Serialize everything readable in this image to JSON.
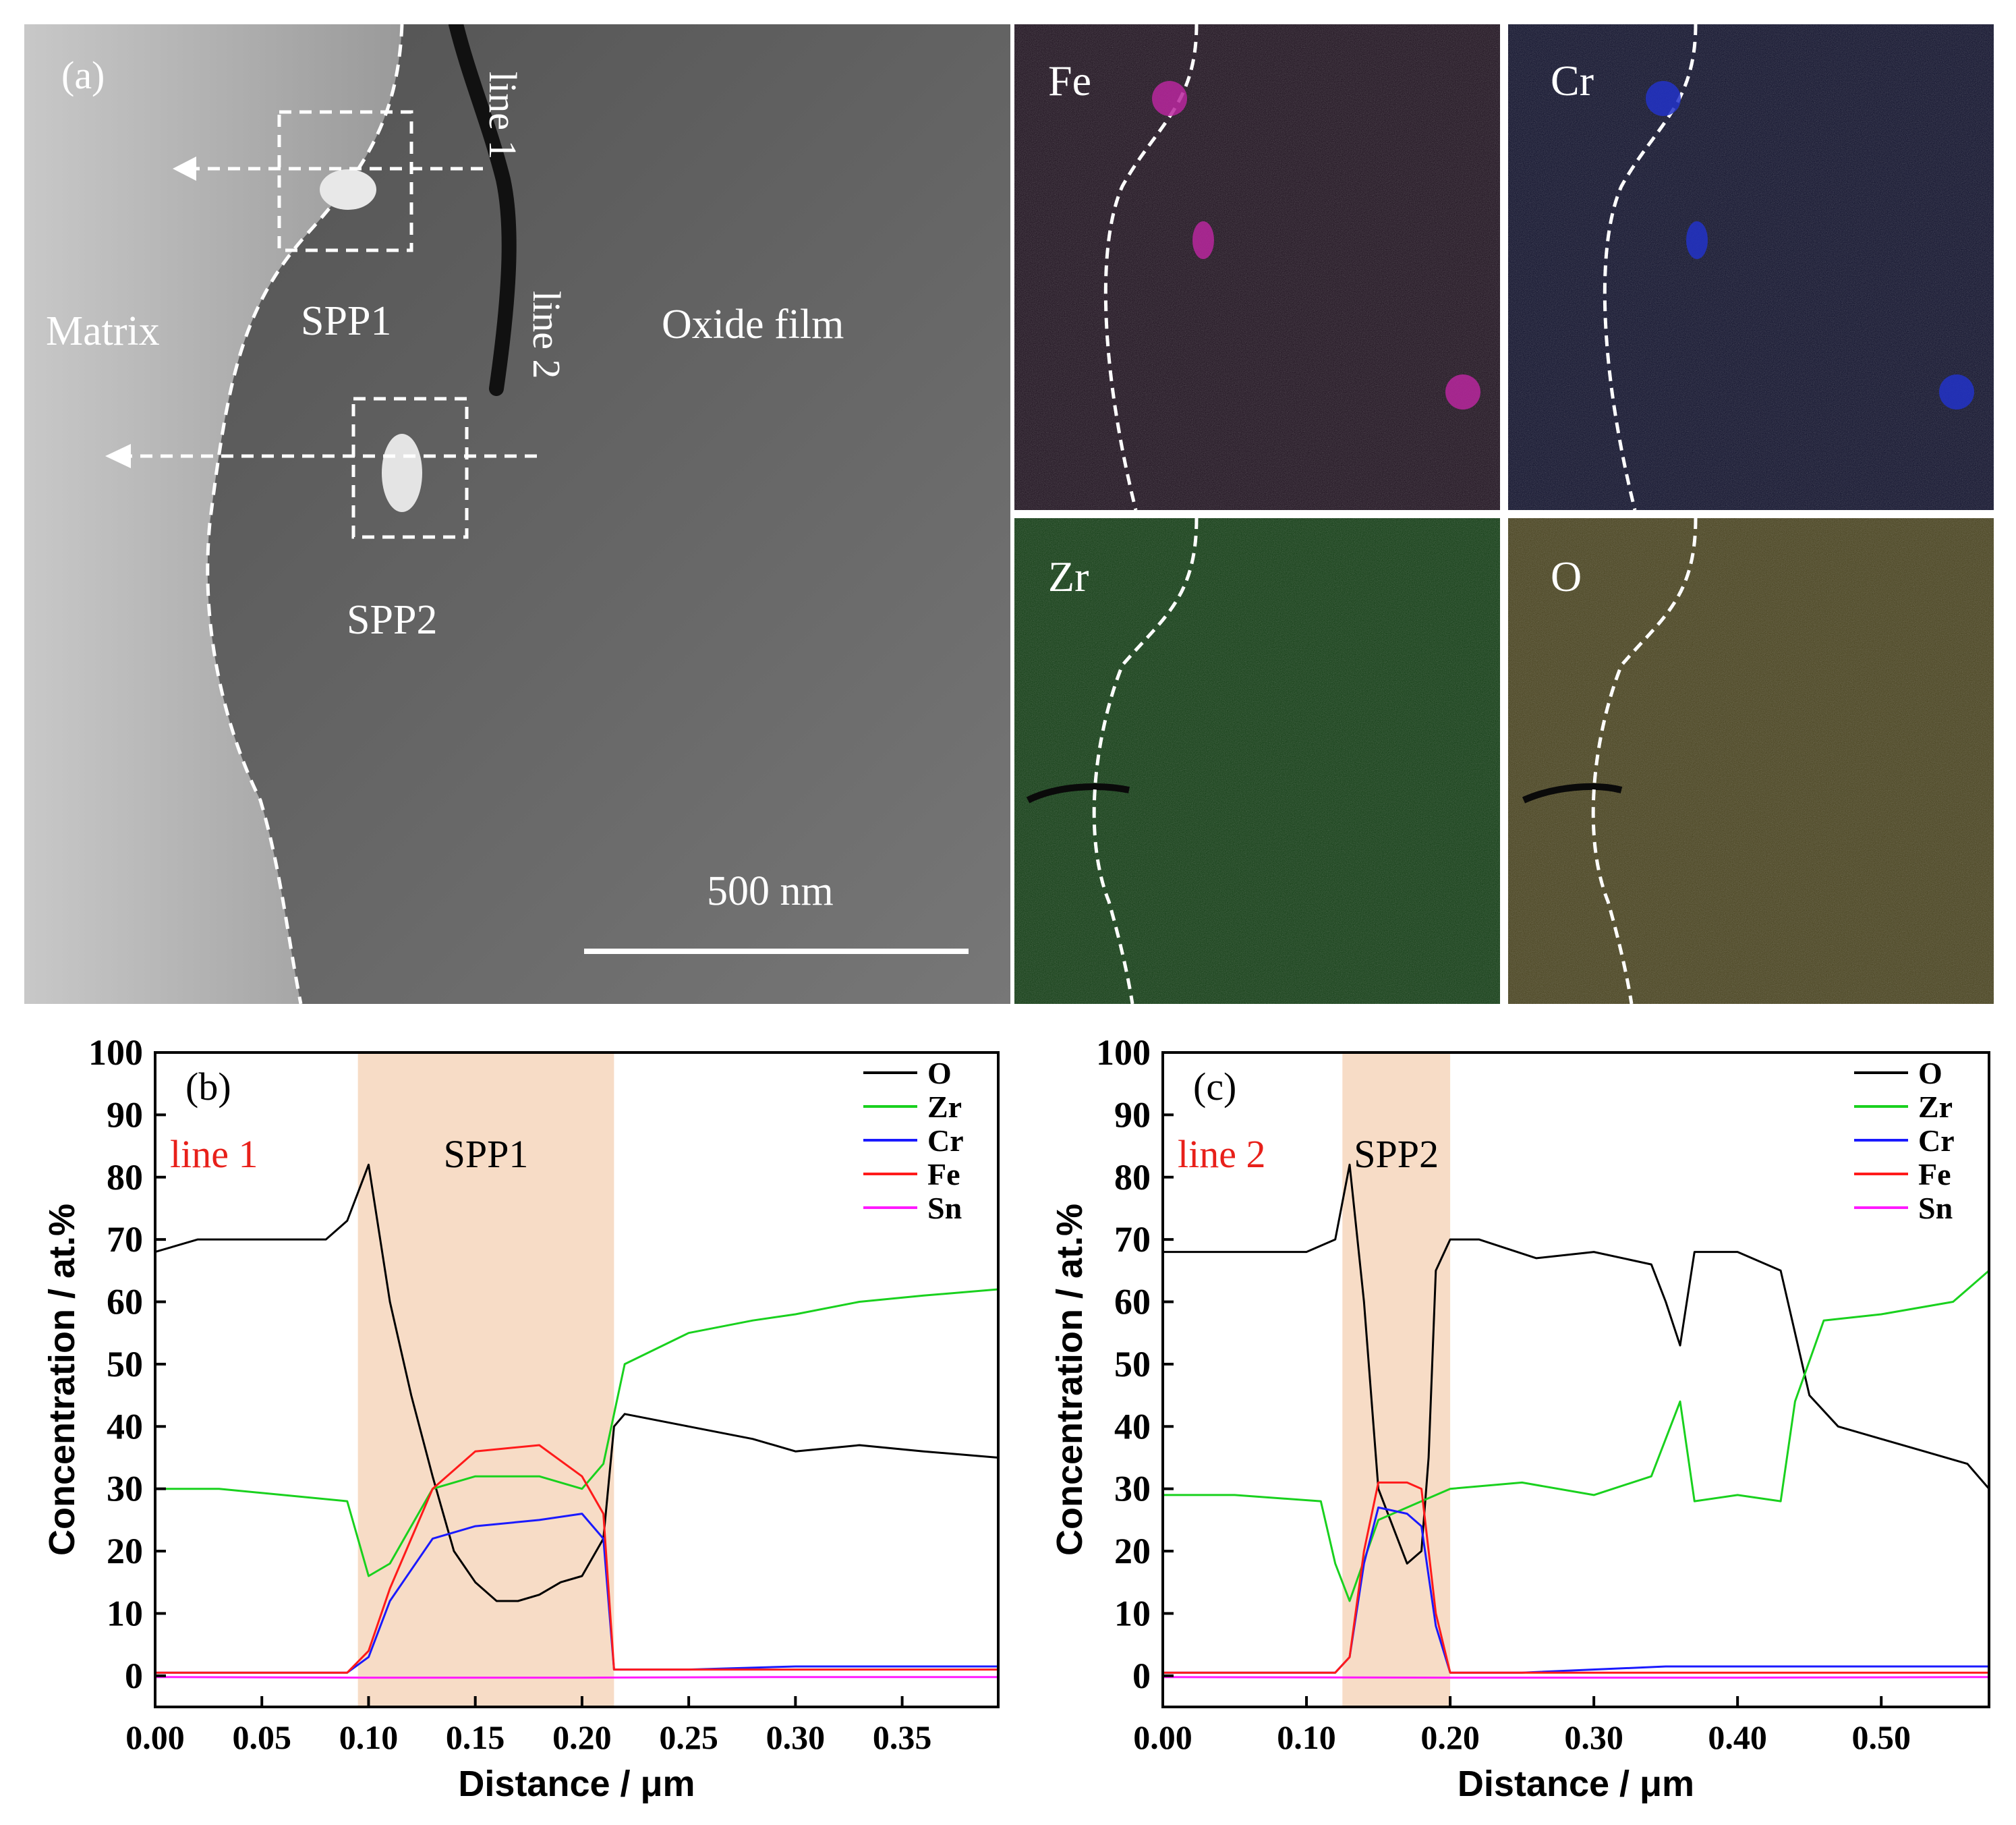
{
  "panel_a": {
    "label": "(a)",
    "region_matrix": "Matrix",
    "region_oxide": "Oxide film",
    "spp1_label": "SPP1",
    "spp2_label": "SPP2",
    "line1_label": "line 1",
    "line2_label": "line 2",
    "scale_bar_label": "500 nm"
  },
  "maps": [
    {
      "element": "Fe",
      "color": "#b8279e",
      "background": "#1a0c1a"
    },
    {
      "element": "Cr",
      "color": "#2232c8",
      "background": "#0b0c28"
    },
    {
      "element": "Zr",
      "color": "#2e8c24",
      "background": "#0d3a0f"
    },
    {
      "element": "O",
      "color": "#a89a2a",
      "background": "#46401a"
    }
  ],
  "chart_data": [
    {
      "type": "line",
      "panel_label": "(b)",
      "line_label": "line 1",
      "highlight_label": "SPP1",
      "highlight_x": [
        0.095,
        0.215
      ],
      "xlabel": "Distance / μm",
      "ylabel": "Concentration / at.%",
      "xlim": [
        0.0,
        0.395
      ],
      "ylim": [
        -5,
        100
      ],
      "xticks": [
        0.0,
        0.05,
        0.1,
        0.15,
        0.2,
        0.25,
        0.3,
        0.35
      ],
      "xtick_labels": [
        "0.00",
        "0.05",
        "0.10",
        "0.15",
        "0.20",
        "0.25",
        "0.30",
        "0.35"
      ],
      "yticks": [
        0,
        10,
        20,
        30,
        40,
        50,
        60,
        70,
        80,
        90,
        100
      ],
      "ytick_labels": [
        "0",
        "10",
        "20",
        "30",
        "40",
        "50",
        "60",
        "70",
        "80",
        "90",
        "100"
      ],
      "legend_position": "top-right",
      "series": [
        {
          "name": "O",
          "color": "#000000",
          "x": [
            0.0,
            0.02,
            0.04,
            0.06,
            0.08,
            0.09,
            0.1,
            0.11,
            0.12,
            0.13,
            0.14,
            0.15,
            0.16,
            0.17,
            0.18,
            0.19,
            0.2,
            0.21,
            0.215,
            0.22,
            0.25,
            0.28,
            0.3,
            0.33,
            0.36,
            0.395
          ],
          "y": [
            68,
            70,
            70,
            70,
            70,
            73,
            82,
            60,
            45,
            32,
            20,
            15,
            12,
            12,
            13,
            15,
            16,
            22,
            40,
            42,
            40,
            38,
            36,
            37,
            36,
            35
          ]
        },
        {
          "name": "Zr",
          "color": "#19d11e",
          "x": [
            0.0,
            0.03,
            0.06,
            0.09,
            0.1,
            0.11,
            0.12,
            0.13,
            0.15,
            0.18,
            0.2,
            0.21,
            0.22,
            0.25,
            0.28,
            0.3,
            0.33,
            0.36,
            0.395
          ],
          "y": [
            30,
            30,
            29,
            28,
            16,
            18,
            24,
            30,
            32,
            32,
            30,
            34,
            50,
            55,
            57,
            58,
            60,
            61,
            62
          ]
        },
        {
          "name": "Cr",
          "color": "#1a1aff",
          "x": [
            0.0,
            0.09,
            0.1,
            0.11,
            0.12,
            0.13,
            0.15,
            0.18,
            0.2,
            0.21,
            0.215,
            0.25,
            0.3,
            0.35,
            0.395
          ],
          "y": [
            0.5,
            0.5,
            3,
            12,
            17,
            22,
            24,
            25,
            26,
            22,
            1,
            1,
            1.5,
            1.5,
            1.5
          ]
        },
        {
          "name": "Fe",
          "color": "#ff1a1a",
          "x": [
            0.0,
            0.09,
            0.1,
            0.11,
            0.12,
            0.13,
            0.15,
            0.18,
            0.2,
            0.21,
            0.215,
            0.25,
            0.3,
            0.35,
            0.395
          ],
          "y": [
            0.5,
            0.5,
            4,
            14,
            22,
            30,
            36,
            37,
            32,
            26,
            1,
            1,
            1,
            1,
            1
          ]
        },
        {
          "name": "Sn",
          "color": "#ff1aff",
          "x": [
            0.0,
            0.1,
            0.2,
            0.3,
            0.395
          ],
          "y": [
            -0.2,
            -0.3,
            -0.3,
            -0.2,
            -0.2
          ]
        }
      ]
    },
    {
      "type": "line",
      "panel_label": "(c)",
      "line_label": "line 2",
      "highlight_label": "SPP2",
      "highlight_x": [
        0.125,
        0.2
      ],
      "xlabel": "Distance / μm",
      "ylabel": "Concentration / at.%",
      "xlim": [
        0.0,
        0.575
      ],
      "ylim": [
        -5,
        100
      ],
      "xticks": [
        0.0,
        0.1,
        0.2,
        0.3,
        0.4,
        0.5
      ],
      "xtick_labels": [
        "0.00",
        "0.10",
        "0.20",
        "0.30",
        "0.40",
        "0.50"
      ],
      "yticks": [
        0,
        10,
        20,
        30,
        40,
        50,
        60,
        70,
        80,
        90,
        100
      ],
      "ytick_labels": [
        "0",
        "10",
        "20",
        "30",
        "40",
        "50",
        "60",
        "70",
        "80",
        "90",
        "100"
      ],
      "legend_position": "top-right",
      "series": [
        {
          "name": "O",
          "color": "#000000",
          "x": [
            0.0,
            0.05,
            0.1,
            0.12,
            0.13,
            0.14,
            0.15,
            0.17,
            0.18,
            0.185,
            0.19,
            0.2,
            0.22,
            0.26,
            0.3,
            0.34,
            0.35,
            0.36,
            0.37,
            0.4,
            0.43,
            0.45,
            0.47,
            0.5,
            0.53,
            0.56,
            0.575
          ],
          "y": [
            68,
            68,
            68,
            70,
            82,
            60,
            30,
            18,
            20,
            35,
            65,
            70,
            70,
            67,
            68,
            66,
            60,
            53,
            68,
            68,
            65,
            45,
            40,
            38,
            36,
            34,
            30
          ]
        },
        {
          "name": "Zr",
          "color": "#19d11e",
          "x": [
            0.0,
            0.05,
            0.11,
            0.12,
            0.13,
            0.15,
            0.18,
            0.2,
            0.25,
            0.3,
            0.34,
            0.36,
            0.37,
            0.4,
            0.43,
            0.44,
            0.46,
            0.5,
            0.55,
            0.575
          ],
          "y": [
            29,
            29,
            28,
            18,
            12,
            25,
            28,
            30,
            31,
            29,
            32,
            44,
            28,
            29,
            28,
            44,
            57,
            58,
            60,
            65
          ]
        },
        {
          "name": "Cr",
          "color": "#1a1aff",
          "x": [
            0.0,
            0.12,
            0.13,
            0.14,
            0.15,
            0.17,
            0.18,
            0.19,
            0.2,
            0.25,
            0.35,
            0.45,
            0.575
          ],
          "y": [
            0.5,
            0.5,
            3,
            18,
            27,
            26,
            24,
            8,
            0.5,
            0.5,
            1.5,
            1.5,
            1.5
          ]
        },
        {
          "name": "Fe",
          "color": "#ff1a1a",
          "x": [
            0.0,
            0.12,
            0.13,
            0.14,
            0.15,
            0.17,
            0.18,
            0.19,
            0.2,
            0.25,
            0.35,
            0.45,
            0.575
          ],
          "y": [
            0.5,
            0.5,
            3,
            20,
            31,
            31,
            30,
            10,
            0.5,
            0.5,
            0.5,
            0.5,
            0.5
          ]
        },
        {
          "name": "Sn",
          "color": "#ff1aff",
          "x": [
            0.0,
            0.2,
            0.4,
            0.575
          ],
          "y": [
            -0.2,
            -0.3,
            -0.3,
            -0.2
          ]
        }
      ]
    }
  ]
}
